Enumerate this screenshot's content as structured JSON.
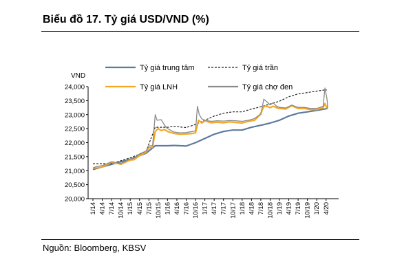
{
  "title": "Biểu đồ 17. Tỷ giá USD/VND (%)",
  "source": "Nguồn:  Bloomberg, KBSV",
  "chart_data": {
    "type": "line",
    "unit_label": "VND",
    "ylim": [
      20000,
      24000
    ],
    "yticks": [
      20000,
      20500,
      21000,
      21500,
      22000,
      22500,
      23000,
      23500,
      24000
    ],
    "ytick_labels": [
      "20,000",
      "20,500",
      "21,000",
      "21,500",
      "22,000",
      "22,500",
      "23,000",
      "23,500",
      "24,000"
    ],
    "x_range": [
      2014.0,
      2020.5
    ],
    "xtick_labels": [
      "1/14",
      "4/14",
      "7/14",
      "10/14",
      "1/15",
      "4/15",
      "7/15",
      "10/15",
      "1/16",
      "4/16",
      "7/16",
      "10/16",
      "1/17",
      "4/17",
      "7/17",
      "10/17",
      "1/18",
      "4/18",
      "7/18",
      "10/18",
      "1/19",
      "4/19",
      "7/19",
      "10/19",
      "1/20",
      "4/20"
    ],
    "grid": false,
    "legend_position": "top",
    "series": [
      {
        "name": "Tỷ giá trung tâm",
        "color": "#5b7a9f",
        "style": "solid",
        "points": [
          [
            2014.0,
            21040
          ],
          [
            2015.0,
            21410
          ],
          [
            2015.42,
            21620
          ],
          [
            2015.67,
            21890
          ],
          [
            2016.0,
            21890
          ],
          [
            2016.17,
            21900
          ],
          [
            2016.5,
            21880
          ],
          [
            2016.75,
            22000
          ],
          [
            2017.0,
            22150
          ],
          [
            2017.25,
            22300
          ],
          [
            2017.5,
            22400
          ],
          [
            2017.75,
            22450
          ],
          [
            2018.0,
            22450
          ],
          [
            2018.25,
            22550
          ],
          [
            2018.5,
            22620
          ],
          [
            2018.75,
            22700
          ],
          [
            2019.0,
            22800
          ],
          [
            2019.25,
            22950
          ],
          [
            2019.5,
            23050
          ],
          [
            2019.75,
            23100
          ],
          [
            2020.0,
            23150
          ],
          [
            2020.25,
            23210
          ],
          [
            2020.5,
            23230
          ]
        ]
      },
      {
        "name": "Tỷ giá trần",
        "color": "#222222",
        "style": "dashed",
        "points": [
          [
            2014.0,
            21250
          ],
          [
            2014.08,
            21250
          ],
          [
            2014.5,
            21250
          ],
          [
            2015.0,
            21460
          ],
          [
            2015.42,
            21670
          ],
          [
            2015.67,
            22550
          ],
          [
            2016.0,
            22550
          ],
          [
            2016.17,
            22580
          ],
          [
            2016.5,
            22540
          ],
          [
            2016.75,
            22650
          ],
          [
            2017.0,
            22800
          ],
          [
            2017.25,
            22950
          ],
          [
            2017.5,
            23050
          ],
          [
            2017.75,
            23100
          ],
          [
            2018.0,
            23100
          ],
          [
            2018.25,
            23200
          ],
          [
            2018.5,
            23280
          ],
          [
            2018.75,
            23380
          ],
          [
            2019.0,
            23480
          ],
          [
            2019.25,
            23640
          ],
          [
            2019.5,
            23740
          ],
          [
            2019.75,
            23790
          ],
          [
            2020.0,
            23840
          ],
          [
            2020.2,
            23880
          ],
          [
            2020.27,
            23880
          ]
        ]
      },
      {
        "name": "Tỷ giá LNH",
        "color": "#f5a623",
        "style": "solid",
        "points": [
          [
            2014.0,
            21090
          ],
          [
            2014.1,
            21100
          ],
          [
            2014.25,
            21130
          ],
          [
            2014.5,
            21300
          ],
          [
            2014.75,
            21230
          ],
          [
            2015.0,
            21380
          ],
          [
            2015.1,
            21390
          ],
          [
            2015.25,
            21540
          ],
          [
            2015.42,
            21650
          ],
          [
            2015.5,
            21820
          ],
          [
            2015.6,
            21840
          ],
          [
            2015.67,
            22400
          ],
          [
            2015.75,
            22500
          ],
          [
            2015.83,
            22430
          ],
          [
            2015.92,
            22470
          ],
          [
            2016.0,
            22400
          ],
          [
            2016.17,
            22330
          ],
          [
            2016.33,
            22300
          ],
          [
            2016.5,
            22310
          ],
          [
            2016.67,
            22330
          ],
          [
            2016.75,
            22350
          ],
          [
            2016.83,
            22800
          ],
          [
            2016.92,
            22700
          ],
          [
            2017.0,
            22780
          ],
          [
            2017.17,
            22710
          ],
          [
            2017.33,
            22730
          ],
          [
            2017.5,
            22710
          ],
          [
            2017.67,
            22740
          ],
          [
            2017.83,
            22720
          ],
          [
            2018.0,
            22700
          ],
          [
            2018.17,
            22760
          ],
          [
            2018.33,
            22800
          ],
          [
            2018.42,
            22910
          ],
          [
            2018.5,
            23050
          ],
          [
            2018.58,
            23290
          ],
          [
            2018.67,
            23300
          ],
          [
            2018.75,
            23250
          ],
          [
            2018.83,
            23300
          ],
          [
            2018.92,
            23250
          ],
          [
            2019.0,
            23220
          ],
          [
            2019.17,
            23200
          ],
          [
            2019.33,
            23320
          ],
          [
            2019.5,
            23220
          ],
          [
            2019.67,
            23220
          ],
          [
            2019.83,
            23180
          ],
          [
            2020.0,
            23180
          ],
          [
            2020.17,
            23250
          ],
          [
            2020.22,
            23400
          ],
          [
            2020.27,
            23250
          ],
          [
            2020.35,
            23260
          ],
          [
            2020.5,
            23230
          ]
        ]
      },
      {
        "name": "Tỷ giá chợ đen",
        "color": "#8a8a8a",
        "style": "solid",
        "points": [
          [
            2014.0,
            21100
          ],
          [
            2014.1,
            21150
          ],
          [
            2014.25,
            21180
          ],
          [
            2014.5,
            21320
          ],
          [
            2014.75,
            21260
          ],
          [
            2015.0,
            21420
          ],
          [
            2015.1,
            21440
          ],
          [
            2015.25,
            21600
          ],
          [
            2015.42,
            21700
          ],
          [
            2015.5,
            21880
          ],
          [
            2015.6,
            21900
          ],
          [
            2015.67,
            23000
          ],
          [
            2015.72,
            22800
          ],
          [
            2015.83,
            22820
          ],
          [
            2015.92,
            22620
          ],
          [
            2016.0,
            22500
          ],
          [
            2016.17,
            22380
          ],
          [
            2016.33,
            22350
          ],
          [
            2016.5,
            22360
          ],
          [
            2016.67,
            22400
          ],
          [
            2016.75,
            22420
          ],
          [
            2016.8,
            23300
          ],
          [
            2016.85,
            23000
          ],
          [
            2016.92,
            22850
          ],
          [
            2017.0,
            22800
          ],
          [
            2017.17,
            22760
          ],
          [
            2017.33,
            22780
          ],
          [
            2017.5,
            22770
          ],
          [
            2017.67,
            22790
          ],
          [
            2017.83,
            22780
          ],
          [
            2018.0,
            22760
          ],
          [
            2018.17,
            22800
          ],
          [
            2018.33,
            22860
          ],
          [
            2018.42,
            22950
          ],
          [
            2018.5,
            23000
          ],
          [
            2018.58,
            23550
          ],
          [
            2018.67,
            23450
          ],
          [
            2018.75,
            23350
          ],
          [
            2018.83,
            23420
          ],
          [
            2018.92,
            23300
          ],
          [
            2019.0,
            23260
          ],
          [
            2019.17,
            23240
          ],
          [
            2019.33,
            23340
          ],
          [
            2019.5,
            23260
          ],
          [
            2019.67,
            23260
          ],
          [
            2019.83,
            23220
          ],
          [
            2020.0,
            23220
          ],
          [
            2020.17,
            23300
          ],
          [
            2020.22,
            23950
          ],
          [
            2020.27,
            23600
          ],
          [
            2020.35,
            23400
          ],
          [
            2020.5,
            23230
          ]
        ]
      }
    ]
  }
}
